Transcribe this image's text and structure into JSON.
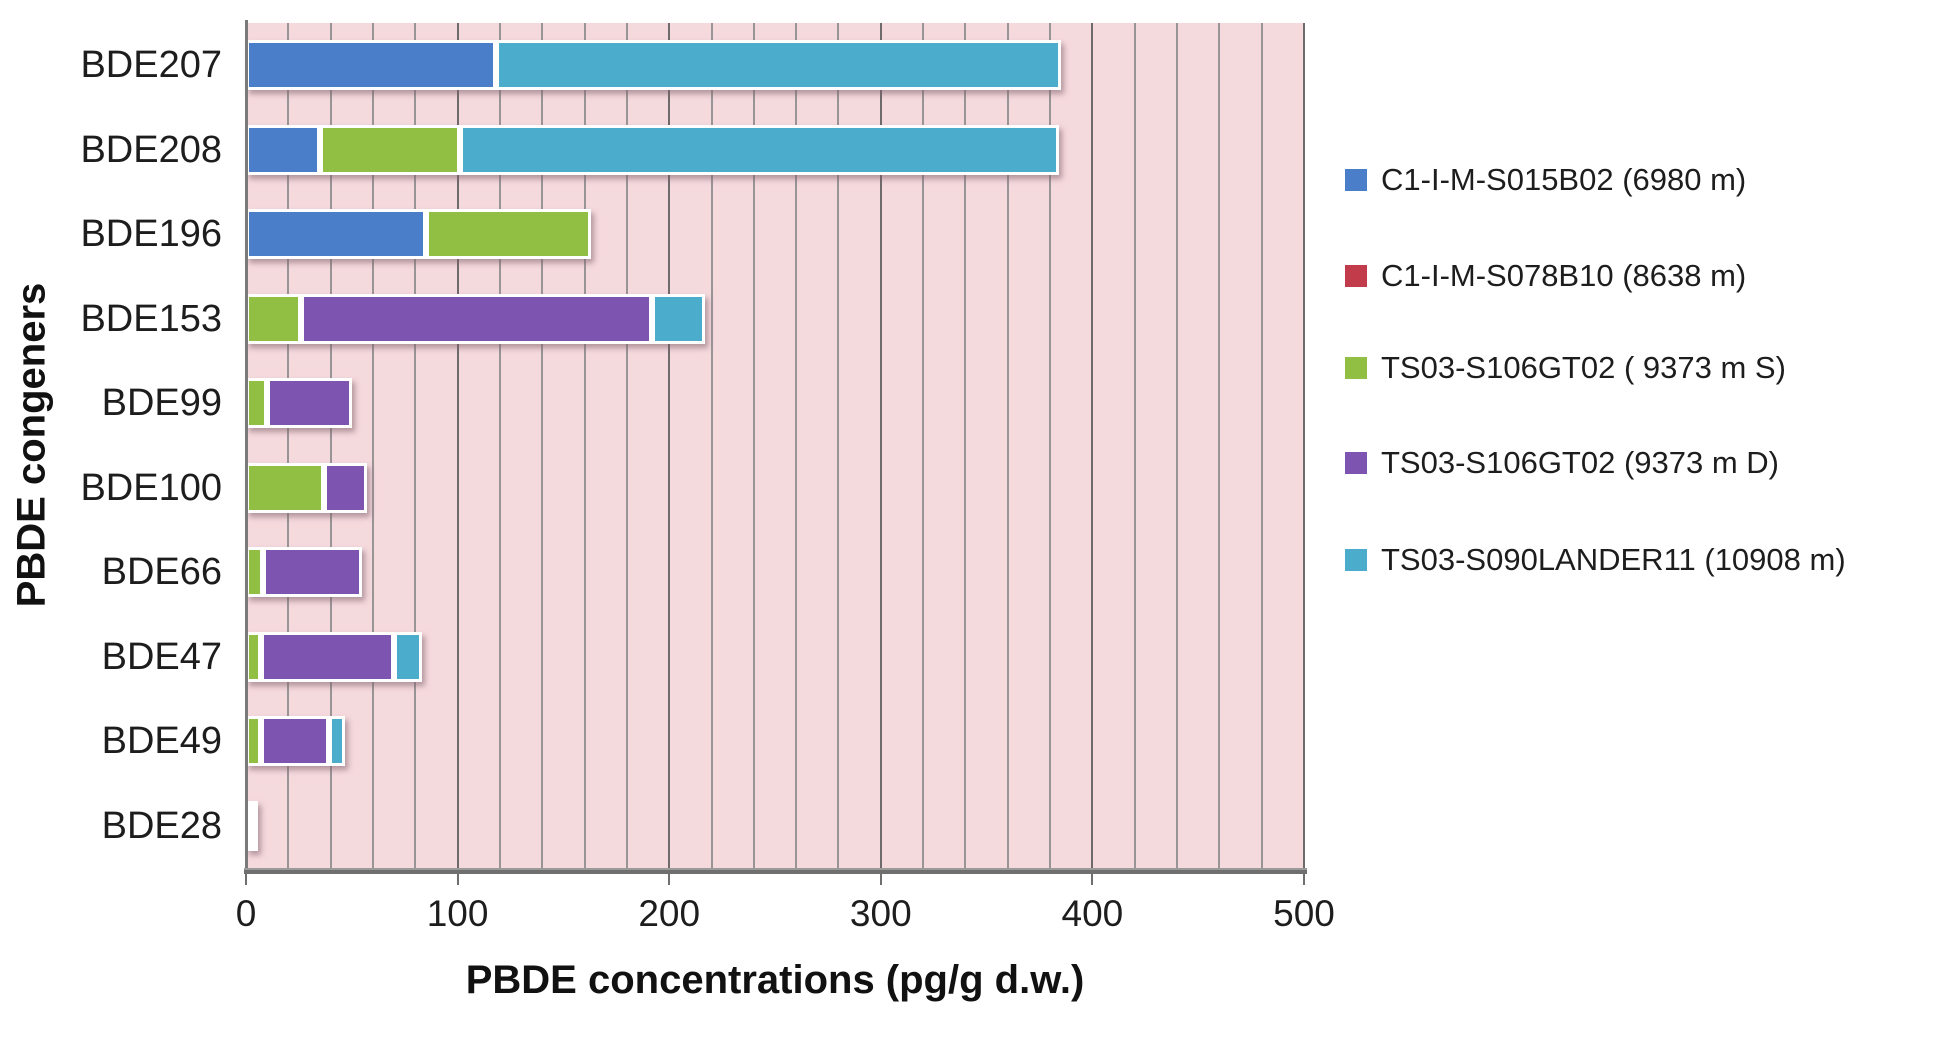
{
  "chart_data": {
    "type": "bar",
    "orientation": "horizontal-stacked",
    "xlabel": "PBDE concentrations (pg/g d.w.)",
    "ylabel": "PBDE congeners",
    "xlim": [
      0,
      500
    ],
    "x_ticks": [
      0,
      100,
      200,
      300,
      400,
      500
    ],
    "x_tick_labels": [
      "0",
      "100",
      "200",
      "300",
      "400",
      "500"
    ],
    "gridline_step": 20,
    "grid_on": true,
    "legend_position": "right",
    "categories": [
      "BDE207",
      "BDE208",
      "BDE196",
      "BDE153",
      "BDE99",
      "BDE100",
      "BDE66",
      "BDE47",
      "BDE49",
      "BDE28"
    ],
    "series": [
      {
        "name": "C1-I-M-S015B02 (6980 m)",
        "color": "#4A7EC8",
        "values": [
          118,
          35,
          85,
          0,
          0,
          0,
          0,
          0,
          0,
          0
        ]
      },
      {
        "name": "C1-I-M-S078B10 (8638 m)",
        "color": "#C23B4B",
        "values": [
          0,
          0,
          0,
          0,
          0,
          0,
          0,
          0,
          0,
          0
        ]
      },
      {
        "name": "TS03-S106GT02 ( 9373 m S)",
        "color": "#90BF44",
        "values": [
          0,
          66,
          78,
          26,
          10,
          37,
          8,
          7,
          7,
          1
        ]
      },
      {
        "name": "TS03-S106GT02 (9373 m D)",
        "color": "#7D54B0",
        "values": [
          0,
          0,
          0,
          166,
          40,
          20,
          47,
          63,
          32,
          1
        ]
      },
      {
        "name": "TS03-S090LANDER11 (10908 m)",
        "color": "#4CACCC",
        "values": [
          267,
          283,
          0,
          25,
          0,
          0,
          0,
          13,
          8,
          0
        ]
      }
    ],
    "totals": [
      385,
      384,
      163,
      217,
      50,
      57,
      55,
      83,
      47,
      2
    ]
  },
  "colors": {
    "plot_background": "#F4D9DD",
    "grid_minor": "#999496",
    "grid_major": "#6F6A6C",
    "axis_line": "#6F6F6F",
    "text": "#1D1D1D",
    "bar_border": "#FFFFFF"
  }
}
